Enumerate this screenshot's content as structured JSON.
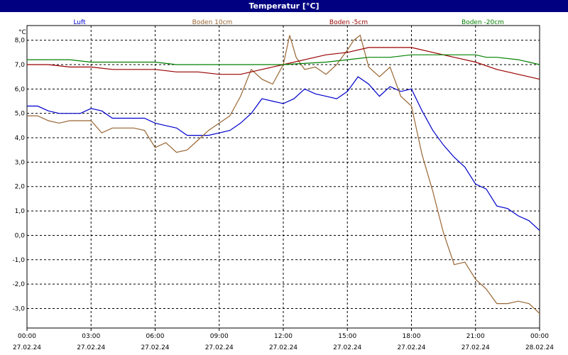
{
  "window": {
    "title": "Temperatur [°C]"
  },
  "chart_data": {
    "type": "line",
    "title": "Temperatur [°C]",
    "ylabel": "°C",
    "xlabel": "",
    "ylim": [
      -3.8,
      8.6
    ],
    "xlim": [
      0,
      24
    ],
    "grid": true,
    "legend": "top",
    "y_ticks": [
      8,
      7,
      6,
      5,
      4,
      3,
      2,
      1,
      0,
      -1,
      -2,
      -3
    ],
    "y_tick_labels": [
      "8,0",
      "7,0",
      "6,0",
      "5,0",
      "4,0",
      "3,0",
      "2,0",
      "1,0",
      "0,0",
      "-1,0",
      "-2,0",
      "-3,0"
    ],
    "x_ticks": [
      0,
      3,
      6,
      9,
      12,
      15,
      18,
      21,
      24
    ],
    "x_tick_time_labels": [
      "00:00",
      "03:00",
      "06:00",
      "09:00",
      "12:00",
      "15:00",
      "18:00",
      "21:00",
      "00:00"
    ],
    "x_tick_date_labels": [
      "27.02.24",
      "27.02.24",
      "27.02.24",
      "27.02.24",
      "27.02.24",
      "27.02.24",
      "27.02.24",
      "27.02.24",
      "28.02.24"
    ],
    "series": [
      {
        "name": "Luft",
        "color": "#0000cc",
        "x": [
          0,
          0.5,
          1,
          1.5,
          2,
          2.5,
          3,
          3.5,
          4,
          4.5,
          5,
          5.5,
          6,
          6.5,
          7,
          7.5,
          8,
          8.5,
          9,
          9.5,
          10,
          10.5,
          11,
          11.5,
          12,
          12.5,
          13,
          13.5,
          14,
          14.5,
          15,
          15.5,
          16,
          16.5,
          17,
          17.5,
          18,
          18.5,
          19,
          19.5,
          20,
          20.5,
          21,
          21.5,
          22,
          22.5,
          23,
          23.5,
          24
        ],
        "values": [
          5.3,
          5.3,
          5.1,
          5.0,
          5.0,
          5.0,
          5.2,
          5.1,
          4.8,
          4.8,
          4.8,
          4.8,
          4.6,
          4.5,
          4.4,
          4.1,
          4.1,
          4.1,
          4.2,
          4.3,
          4.6,
          5.0,
          5.6,
          5.5,
          5.4,
          5.6,
          6.0,
          5.8,
          5.7,
          5.6,
          5.9,
          6.5,
          6.2,
          5.7,
          6.1,
          5.9,
          6.0,
          5.1,
          4.3,
          3.7,
          3.2,
          2.8,
          2.1,
          1.9,
          1.2,
          1.1,
          0.8,
          0.6,
          0.2
        ]
      },
      {
        "name": "Boden 10cm",
        "color": "#996633",
        "x": [
          0,
          0.5,
          1,
          1.5,
          2,
          2.5,
          3,
          3.5,
          4,
          4.5,
          5,
          5.5,
          6,
          6.5,
          7,
          7.5,
          8,
          8.5,
          9,
          9.5,
          10,
          10.5,
          11,
          11.5,
          12,
          12.3,
          12.6,
          13,
          13.5,
          14,
          14.5,
          15,
          15.3,
          15.6,
          16,
          16.5,
          17,
          17.5,
          18,
          18.5,
          19,
          19.5,
          20,
          20.5,
          21,
          21.5,
          22,
          22.5,
          23,
          23.5,
          24
        ],
        "values": [
          4.9,
          4.9,
          4.7,
          4.6,
          4.7,
          4.7,
          4.7,
          4.2,
          4.4,
          4.4,
          4.4,
          4.3,
          3.6,
          3.8,
          3.4,
          3.5,
          3.9,
          4.3,
          4.6,
          4.9,
          5.7,
          6.8,
          6.4,
          6.2,
          7.0,
          8.2,
          7.3,
          6.8,
          6.9,
          6.6,
          7.0,
          7.6,
          8.0,
          8.2,
          6.9,
          6.5,
          6.9,
          5.7,
          5.3,
          3.3,
          1.8,
          0.1,
          -1.2,
          -1.1,
          -1.8,
          -2.2,
          -2.8,
          -2.8,
          -2.7,
          -2.8,
          -3.2
        ]
      },
      {
        "name": "Boden -5cm",
        "color": "#990000",
        "x": [
          0,
          1,
          2,
          3,
          4,
          5,
          6,
          7,
          8,
          9,
          10,
          11,
          12,
          13,
          14,
          15,
          16,
          17,
          18,
          19,
          20,
          21,
          22,
          23,
          24
        ],
        "values": [
          7.0,
          7.0,
          6.9,
          6.9,
          6.8,
          6.8,
          6.8,
          6.7,
          6.7,
          6.6,
          6.6,
          6.8,
          7.0,
          7.2,
          7.4,
          7.5,
          7.7,
          7.7,
          7.7,
          7.5,
          7.3,
          7.1,
          6.8,
          6.6,
          6.4
        ]
      },
      {
        "name": "Boden -20cm",
        "color": "#008000",
        "x": [
          0,
          2,
          3,
          4,
          6,
          7,
          8,
          10,
          12,
          14,
          15,
          16,
          17,
          18,
          19,
          20,
          21,
          21.5,
          22,
          23,
          23.5,
          24
        ],
        "values": [
          7.2,
          7.2,
          7.1,
          7.1,
          7.1,
          7.0,
          7.0,
          7.0,
          7.0,
          7.1,
          7.2,
          7.3,
          7.3,
          7.4,
          7.4,
          7.4,
          7.4,
          7.3,
          7.3,
          7.2,
          7.1,
          7.0
        ]
      }
    ]
  }
}
